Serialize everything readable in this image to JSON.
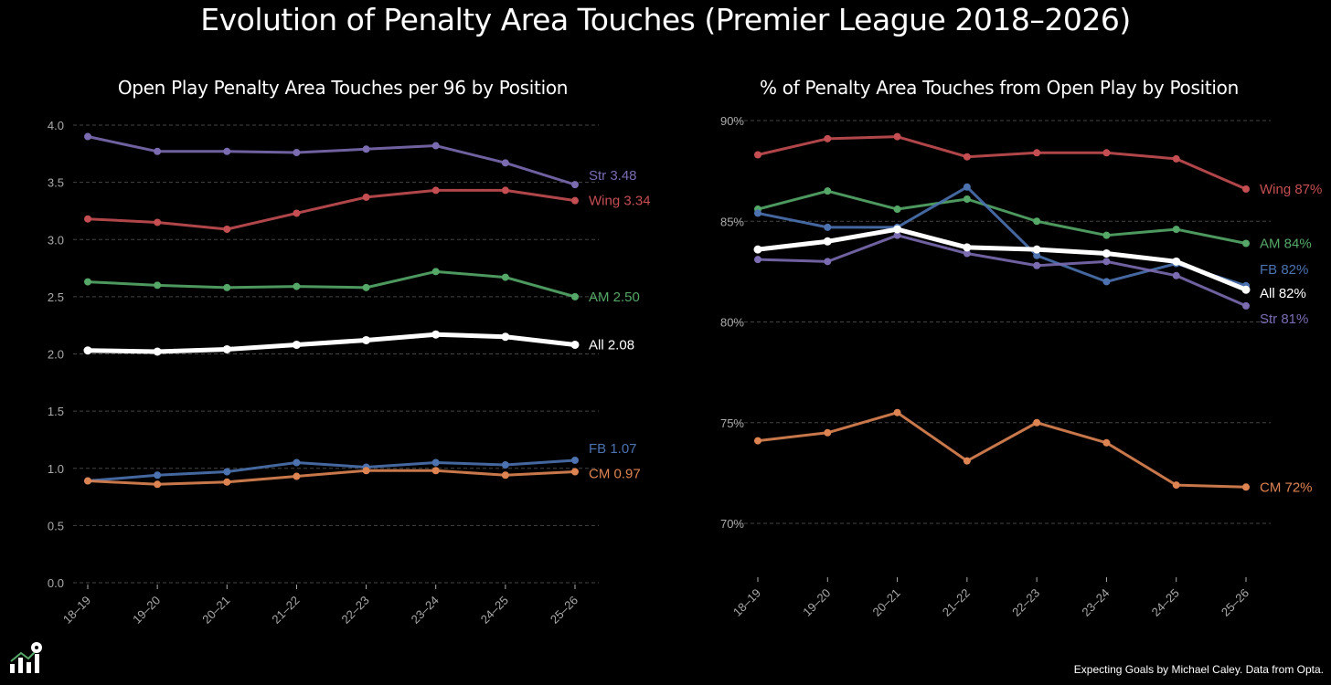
{
  "title": "Evolution of Penalty Area Touches (Premier League 2018–2026)",
  "footer": "Expecting Goals by Michael Caley. Data from Opta.",
  "colors": {
    "Str": "#7b6bb0",
    "Wing": "#c44e52",
    "AM": "#55a868",
    "All": "#ffffff",
    "FB": "#4c72b0",
    "CM": "#dd8452",
    "grid": "#444444",
    "tick": "#aaaaaa"
  },
  "chart_data": [
    {
      "type": "line",
      "title": "Open Play Penalty Area Touches per 96 by Position",
      "categories": [
        "18–19",
        "19–20",
        "20–21",
        "21–22",
        "22–23",
        "23–24",
        "24–25",
        "25–26"
      ],
      "ylim": [
        0,
        4.0
      ],
      "yticks": [
        "0.0",
        "0.5",
        "1.0",
        "1.5",
        "2.0",
        "2.5",
        "3.0",
        "3.5",
        "4.0"
      ],
      "ytick_values": [
        0,
        0.5,
        1,
        1.5,
        2,
        2.5,
        3,
        3.5,
        4
      ],
      "grid": true,
      "series": [
        {
          "name": "Str",
          "label": "Str 3.48",
          "values": [
            3.9,
            3.77,
            3.77,
            3.76,
            3.79,
            3.82,
            3.67,
            3.48
          ]
        },
        {
          "name": "Wing",
          "label": "Wing 3.34",
          "values": [
            3.18,
            3.15,
            3.09,
            3.23,
            3.37,
            3.43,
            3.43,
            3.34
          ]
        },
        {
          "name": "AM",
          "label": "AM 2.50",
          "values": [
            2.63,
            2.6,
            2.58,
            2.59,
            2.58,
            2.72,
            2.67,
            2.5
          ]
        },
        {
          "name": "All",
          "label": "All 2.08",
          "values": [
            2.03,
            2.02,
            2.04,
            2.08,
            2.12,
            2.17,
            2.15,
            2.08
          ]
        },
        {
          "name": "FB",
          "label": "FB 1.07",
          "values": [
            0.89,
            0.94,
            0.97,
            1.05,
            1.01,
            1.05,
            1.03,
            1.07
          ]
        },
        {
          "name": "CM",
          "label": "CM 0.97",
          "values": [
            0.89,
            0.86,
            0.88,
            0.93,
            0.98,
            0.98,
            0.94,
            0.97
          ]
        }
      ]
    },
    {
      "type": "line",
      "title": "% of Penalty Area Touches from Open Play by Position",
      "categories": [
        "18–19",
        "19–20",
        "20–21",
        "21–22",
        "22–23",
        "23–24",
        "24–25",
        "25–26"
      ],
      "ylim": [
        67,
        90.5
      ],
      "yticks": [
        "70%",
        "75%",
        "80%",
        "85%",
        "90%"
      ],
      "ytick_values": [
        70,
        75,
        80,
        85,
        90
      ],
      "grid": true,
      "series": [
        {
          "name": "Wing",
          "label": "Wing 87%",
          "values": [
            88.3,
            89.1,
            89.2,
            88.2,
            88.4,
            88.4,
            88.1,
            86.6
          ]
        },
        {
          "name": "AM",
          "label": "AM 84%",
          "values": [
            85.6,
            86.5,
            85.6,
            86.1,
            85.0,
            84.3,
            84.6,
            83.9
          ]
        },
        {
          "name": "FB",
          "label": "FB 82%",
          "values": [
            85.4,
            84.7,
            84.7,
            86.7,
            83.3,
            82.0,
            82.9,
            81.8
          ]
        },
        {
          "name": "All",
          "label": "All 82%",
          "values": [
            83.6,
            84.0,
            84.6,
            83.7,
            83.6,
            83.4,
            83.0,
            81.6
          ]
        },
        {
          "name": "Str",
          "label": "Str 81%",
          "values": [
            83.1,
            83.0,
            84.3,
            83.4,
            82.8,
            83.0,
            82.3,
            80.8
          ]
        },
        {
          "name": "CM",
          "label": "CM 72%",
          "values": [
            74.1,
            74.5,
            75.5,
            73.1,
            75.0,
            74.0,
            71.9,
            71.8
          ]
        }
      ]
    }
  ]
}
